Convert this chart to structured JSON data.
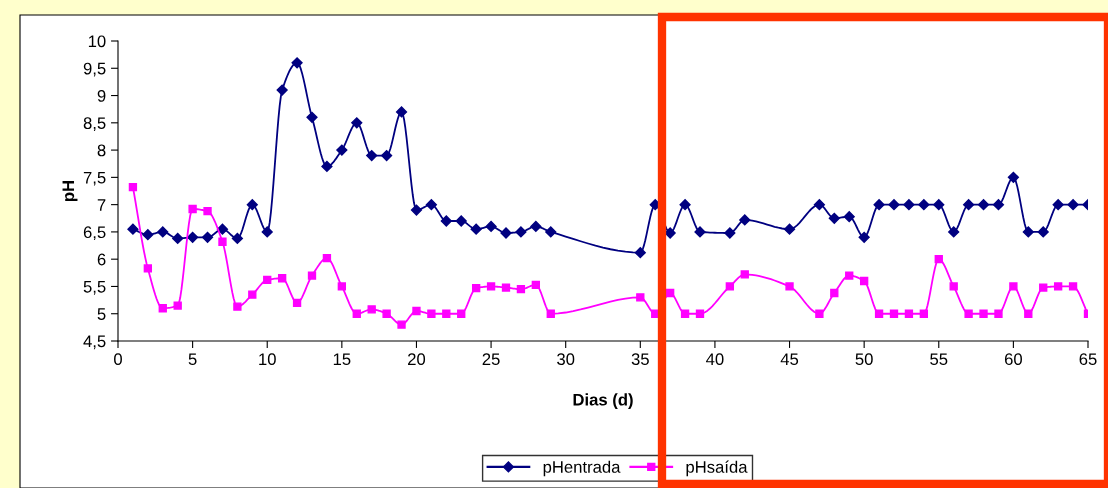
{
  "chart_data": {
    "type": "line",
    "xlabel": "Dias (d)",
    "ylabel": "pH",
    "xlim": [
      0,
      65
    ],
    "xticks": [
      0,
      5,
      10,
      15,
      20,
      25,
      30,
      35,
      40,
      45,
      50,
      55,
      60,
      65
    ],
    "ylim": [
      4.5,
      10
    ],
    "yticks": [
      {
        "value": 4.5,
        "label": "4,5"
      },
      5,
      {
        "value": 5.5,
        "label": "5,5"
      },
      6,
      {
        "value": 6.5,
        "label": "6,5"
      },
      7,
      {
        "value": 7.5,
        "label": "7,5"
      },
      8,
      {
        "value": 8.5,
        "label": "8,5"
      },
      9,
      {
        "value": 9.5,
        "label": "9,5"
      },
      10
    ],
    "x": [
      1,
      2,
      3,
      4,
      5,
      6,
      7,
      8,
      9,
      10,
      11,
      12,
      13,
      14,
      15,
      16,
      17,
      18,
      19,
      20,
      21,
      22,
      23,
      24,
      25,
      26,
      27,
      28,
      29,
      35,
      36,
      37,
      38,
      39,
      41,
      42,
      45,
      47,
      48,
      49,
      50,
      51,
      52,
      53,
      54,
      55,
      56,
      57,
      58,
      59,
      60,
      61,
      62,
      63,
      64,
      65
    ],
    "series": [
      {
        "name": "pHentrada",
        "color": "#000080",
        "marker": "diamond",
        "values": [
          6.55,
          6.45,
          6.5,
          6.38,
          6.4,
          6.4,
          6.55,
          6.38,
          7.0,
          6.5,
          9.1,
          9.6,
          8.6,
          7.7,
          8.0,
          8.5,
          7.9,
          7.9,
          8.7,
          6.9,
          7.0,
          6.7,
          6.7,
          6.55,
          6.6,
          6.48,
          6.5,
          6.6,
          6.5,
          6.12,
          7.0,
          6.48,
          7.0,
          6.5,
          6.48,
          6.72,
          6.55,
          7.0,
          6.75,
          6.78,
          6.4,
          7.0,
          7.0,
          7.0,
          7.0,
          7.0,
          6.5,
          7.0,
          7.0,
          7.0,
          7.5,
          6.5,
          6.5,
          7.0,
          7.0,
          7.0
        ]
      },
      {
        "name": "pHsaída",
        "color": "#ff00ff",
        "marker": "square",
        "values": [
          7.32,
          5.83,
          5.1,
          5.15,
          6.92,
          6.88,
          6.32,
          5.13,
          5.35,
          5.62,
          5.65,
          5.2,
          5.7,
          6.02,
          5.5,
          5.0,
          5.08,
          5.0,
          4.8,
          5.05,
          5.0,
          5.0,
          5.0,
          5.47,
          5.5,
          5.48,
          5.45,
          5.53,
          5.0,
          5.3,
          5.0,
          5.38,
          5.0,
          5.0,
          5.5,
          5.72,
          5.5,
          5.0,
          5.38,
          5.7,
          5.6,
          5.0,
          5.0,
          5.0,
          5.0,
          6.0,
          5.5,
          5.0,
          5.0,
          5.0,
          5.5,
          5.0,
          5.48,
          5.5,
          5.5,
          5.0
        ]
      }
    ],
    "legend": "bottom",
    "grid": false,
    "line_style": "solid"
  }
}
